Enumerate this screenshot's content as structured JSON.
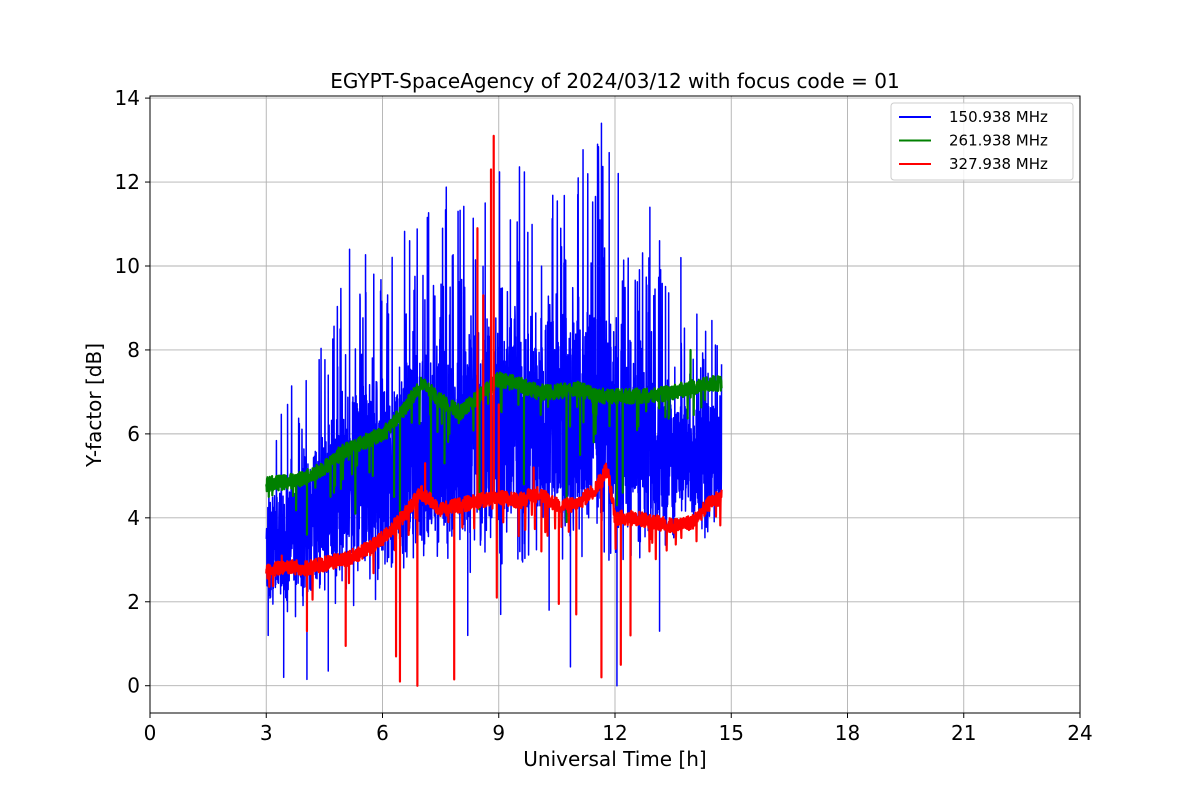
{
  "chart_data": {
    "type": "line",
    "title": "EGYPT-SpaceAgency of 2024/03/12 with focus code = 01",
    "xlabel": "Universal Time [h]",
    "ylabel": "Y-factor [dB]",
    "xlim": [
      0,
      24
    ],
    "ylim": [
      -0.65,
      14.05
    ],
    "xticks": [
      0,
      3,
      6,
      9,
      12,
      15,
      18,
      21,
      24
    ],
    "yticks": [
      0,
      2,
      4,
      6,
      8,
      10,
      12,
      14
    ],
    "grid": true,
    "legend_position": "top-right",
    "colors": {
      "blue": "#0000ff",
      "green": "#008000",
      "red": "#ff0000"
    },
    "series": [
      {
        "name": "150.938 MHz",
        "color": "#0000ff",
        "x_range": [
          3.0,
          14.75
        ],
        "baseline_x": [
          3.0,
          3.5,
          4.0,
          4.5,
          5.0,
          5.5,
          6.0,
          6.5,
          7.0,
          7.5,
          8.0,
          8.5,
          9.0,
          9.5,
          10.0,
          10.5,
          11.0,
          11.5,
          12.0,
          12.5,
          13.0,
          13.5,
          14.0,
          14.5,
          14.75
        ],
        "baseline_y": [
          3.2,
          3.5,
          3.8,
          4.3,
          4.6,
          4.9,
          5.0,
          5.3,
          5.6,
          5.8,
          5.9,
          6.1,
          6.3,
          6.3,
          6.4,
          6.3,
          6.4,
          6.6,
          6.3,
          6.0,
          5.6,
          5.5,
          5.4,
          5.4,
          5.4
        ],
        "spread": [
          1.4,
          1.6,
          1.8,
          2.0,
          2.3,
          2.5,
          2.6,
          2.7,
          2.8,
          2.8,
          2.8,
          2.8,
          2.9,
          2.9,
          2.8,
          2.8,
          2.9,
          3.0,
          2.8,
          2.5,
          2.1,
          1.8,
          1.6,
          1.6,
          1.6
        ],
        "peaks": [
          {
            "x": 3.55,
            "y": 6.7
          },
          {
            "x": 4.6,
            "y": 7.4
          },
          {
            "x": 5.15,
            "y": 10.4
          },
          {
            "x": 5.95,
            "y": 9.4
          },
          {
            "x": 6.7,
            "y": 10.6
          },
          {
            "x": 7.55,
            "y": 10.9
          },
          {
            "x": 7.95,
            "y": 11.3
          },
          {
            "x": 8.65,
            "y": 11.5
          },
          {
            "x": 9.3,
            "y": 11.1
          },
          {
            "x": 9.75,
            "y": 10.8
          },
          {
            "x": 10.6,
            "y": 10.9
          },
          {
            "x": 11.05,
            "y": 12.1
          },
          {
            "x": 11.55,
            "y": 12.9
          },
          {
            "x": 11.65,
            "y": 13.4
          },
          {
            "x": 11.85,
            "y": 12.7
          },
          {
            "x": 12.9,
            "y": 11.4
          },
          {
            "x": 13.15,
            "y": 10.6
          },
          {
            "x": 13.7,
            "y": 10.2
          },
          {
            "x": 14.5,
            "y": 8.7
          }
        ],
        "dips": [
          {
            "x": 3.05,
            "y": 1.2
          },
          {
            "x": 3.45,
            "y": 0.2
          },
          {
            "x": 4.05,
            "y": 0.15
          },
          {
            "x": 4.6,
            "y": 0.35
          },
          {
            "x": 8.2,
            "y": 1.2
          },
          {
            "x": 9.05,
            "y": 1.7
          },
          {
            "x": 10.3,
            "y": 1.8
          },
          {
            "x": 10.85,
            "y": 0.45
          },
          {
            "x": 12.05,
            "y": 0.0
          },
          {
            "x": 12.4,
            "y": 1.2
          },
          {
            "x": 13.15,
            "y": 1.3
          }
        ]
      },
      {
        "name": "261.938 MHz",
        "color": "#008000",
        "x_range": [
          3.0,
          14.75
        ],
        "baseline_x": [
          3.0,
          3.5,
          4.0,
          4.5,
          5.0,
          5.5,
          6.0,
          6.5,
          7.0,
          7.5,
          8.0,
          8.5,
          9.0,
          9.5,
          10.0,
          10.5,
          11.0,
          11.5,
          12.0,
          12.5,
          13.0,
          13.5,
          14.0,
          14.5,
          14.75
        ],
        "baseline_y": [
          4.8,
          4.85,
          4.95,
          5.2,
          5.6,
          5.8,
          6.0,
          6.5,
          7.2,
          6.8,
          6.5,
          6.9,
          7.3,
          7.2,
          7.0,
          7.0,
          7.1,
          6.9,
          6.9,
          6.9,
          6.9,
          7.0,
          7.1,
          7.2,
          7.2
        ],
        "dips": [
          {
            "x": 4.05,
            "y": 3.6
          },
          {
            "x": 4.75,
            "y": 4.6
          },
          {
            "x": 5.3,
            "y": 4.1
          },
          {
            "x": 5.75,
            "y": 5.0
          },
          {
            "x": 6.3,
            "y": 4.5
          },
          {
            "x": 6.45,
            "y": 3.5
          },
          {
            "x": 7.25,
            "y": 4.5
          },
          {
            "x": 7.6,
            "y": 5.3
          },
          {
            "x": 8.5,
            "y": 4.2
          },
          {
            "x": 9.65,
            "y": 4.8
          },
          {
            "x": 10.75,
            "y": 3.9
          },
          {
            "x": 11.1,
            "y": 5.5
          },
          {
            "x": 11.45,
            "y": 5.8
          },
          {
            "x": 12.05,
            "y": 4.3
          },
          {
            "x": 12.2,
            "y": 4.6
          },
          {
            "x": 13.3,
            "y": 6.4
          }
        ],
        "peaks": [
          {
            "x": 13.95,
            "y": 8.0
          }
        ]
      },
      {
        "name": "327.938 MHz",
        "color": "#ff0000",
        "x_range": [
          3.0,
          14.75
        ],
        "baseline_x": [
          3.0,
          3.5,
          4.0,
          4.5,
          5.0,
          5.5,
          6.0,
          6.5,
          7.0,
          7.5,
          8.0,
          8.5,
          9.0,
          9.5,
          10.0,
          10.5,
          11.0,
          11.5,
          11.8,
          12.0,
          12.5,
          13.0,
          13.5,
          14.0,
          14.5,
          14.75
        ],
        "baseline_y": [
          2.7,
          2.85,
          2.8,
          2.9,
          3.0,
          3.2,
          3.5,
          4.0,
          4.6,
          4.2,
          4.3,
          4.4,
          4.5,
          4.4,
          4.6,
          4.3,
          4.3,
          4.7,
          5.2,
          4.0,
          4.0,
          3.9,
          3.8,
          3.9,
          4.4,
          4.5
        ],
        "peaks": [
          {
            "x": 3.4,
            "y": 3.1
          },
          {
            "x": 7.1,
            "y": 5.3
          },
          {
            "x": 8.45,
            "y": 10.9
          },
          {
            "x": 8.6,
            "y": 9.3
          },
          {
            "x": 8.8,
            "y": 12.3
          },
          {
            "x": 8.87,
            "y": 13.1
          },
          {
            "x": 9.0,
            "y": 6.7
          },
          {
            "x": 9.9,
            "y": 5.2
          }
        ],
        "dips": [
          {
            "x": 4.05,
            "y": 1.3
          },
          {
            "x": 5.05,
            "y": 0.95
          },
          {
            "x": 6.35,
            "y": 0.7
          },
          {
            "x": 6.45,
            "y": 0.1
          },
          {
            "x": 6.9,
            "y": 0.0
          },
          {
            "x": 7.85,
            "y": 0.15
          },
          {
            "x": 8.95,
            "y": 2.1
          },
          {
            "x": 10.1,
            "y": 3.2
          },
          {
            "x": 10.55,
            "y": 1.95
          },
          {
            "x": 11.0,
            "y": 1.7
          },
          {
            "x": 11.65,
            "y": 0.2
          },
          {
            "x": 12.15,
            "y": 0.5
          },
          {
            "x": 12.4,
            "y": 1.2
          }
        ]
      }
    ]
  }
}
